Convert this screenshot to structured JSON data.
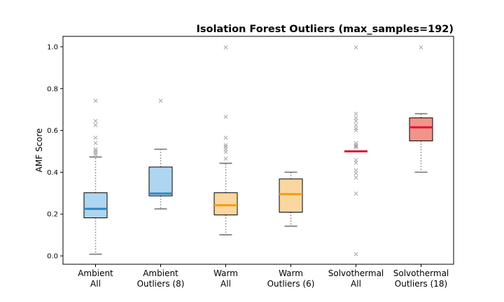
{
  "chart_data": {
    "type": "box",
    "title": "Isolation Forest Outliers (max_samples=192)",
    "xlabel": "",
    "ylabel": "AMF Score",
    "ylim": [
      -0.04,
      1.05
    ],
    "yticks": [
      "0.0",
      "0.2",
      "0.4",
      "0.6",
      "0.8",
      "1.0"
    ],
    "grid": false,
    "legend": "none",
    "groups": [
      {
        "label_line1": "Ambient",
        "label_line2": "All",
        "fill": "#aed6f1",
        "median_color": "#2e86c1",
        "q1": 0.182,
        "median": 0.225,
        "q3": 0.302,
        "whisker_low": 0.008,
        "whisker_high": 0.473,
        "fliers": [
          0.485,
          0.493,
          0.502,
          0.51,
          0.54,
          0.565,
          0.625,
          0.645,
          0.742
        ]
      },
      {
        "label_line1": "Ambient",
        "label_line2": "Outliers (8)",
        "fill": "#aed6f1",
        "median_color": "#2e86c1",
        "q1": 0.287,
        "median": 0.298,
        "q3": 0.425,
        "whisker_low": 0.225,
        "whisker_high": 0.51,
        "fliers": [
          0.742
        ]
      },
      {
        "label_line1": "Warm",
        "label_line2": "All",
        "fill": "#fad7a0",
        "median_color": "#f39c12",
        "q1": 0.196,
        "median": 0.242,
        "q3": 0.302,
        "whisker_low": 0.101,
        "whisker_high": 0.443,
        "fliers": [
          0.465,
          0.497,
          0.51,
          0.522,
          0.53,
          0.565,
          0.665,
          0.997
        ]
      },
      {
        "label_line1": "Warm",
        "label_line2": "Outliers (6)",
        "fill": "#fad7a0",
        "median_color": "#f39c12",
        "q1": 0.209,
        "median": 0.295,
        "q3": 0.368,
        "whisker_low": 0.142,
        "whisker_high": 0.4,
        "fliers": []
      },
      {
        "label_line1": "Solvothermal",
        "label_line2": "All",
        "fill": "#f1948a",
        "median_color": "#dc143c",
        "q1": 0.5,
        "median": 0.5,
        "q3": 0.5,
        "whisker_low": 0.5,
        "whisker_high": 0.5,
        "fliers": [
          0.008,
          0.298,
          0.375,
          0.395,
          0.41,
          0.445,
          0.458,
          0.52,
          0.525,
          0.53,
          0.54,
          0.6,
          0.61,
          0.625,
          0.645,
          0.66,
          0.68,
          0.997
        ]
      },
      {
        "label_line1": "Solvothermal",
        "label_line2": "Outliers (18)",
        "fill": "#f1948a",
        "median_color": "#dc143c",
        "q1": 0.55,
        "median": 0.615,
        "q3": 0.66,
        "whisker_low": 0.4,
        "whisker_high": 0.68,
        "fliers": [
          0.997
        ]
      }
    ]
  }
}
